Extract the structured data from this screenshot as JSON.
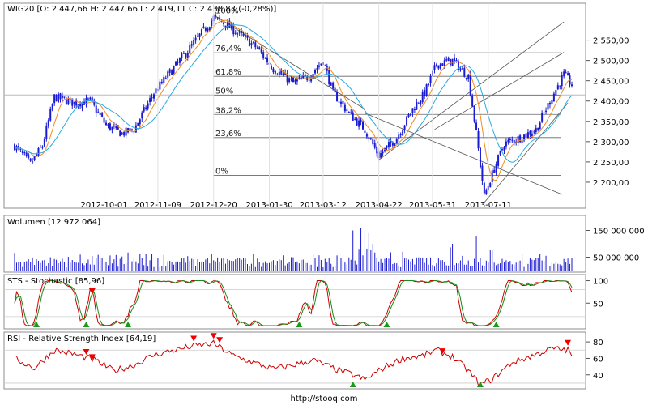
{
  "footer": "http://stooq.com",
  "price_panel": {
    "label": "WIG20 [O: 2 447,66  H: 2 447,66  L: 2 419,11  C: 2 438,83 (-0,28%)]",
    "y_ticks": [
      {
        "value": 2550,
        "label": "2 550,00"
      },
      {
        "value": 2500,
        "label": "2 500,00"
      },
      {
        "value": 2450,
        "label": "2 450,00"
      },
      {
        "value": 2400,
        "label": "2 400,00"
      },
      {
        "value": 2350,
        "label": "2 350,00"
      },
      {
        "value": 2300,
        "label": "2 300,00"
      },
      {
        "value": 2250,
        "label": "2 250,00"
      },
      {
        "value": 2200,
        "label": "2 200,00"
      }
    ],
    "x_ticks": [
      {
        "label": "2012-10-01",
        "index": 45
      },
      {
        "label": "2012-11-09",
        "index": 72
      },
      {
        "label": "2012-12-20",
        "index": 100
      },
      {
        "label": "2013-01-30",
        "index": 128
      },
      {
        "label": "2013-03-12",
        "index": 155
      },
      {
        "label": "2013-04-22",
        "index": 183
      },
      {
        "label": "2013-05-31",
        "index": 210
      },
      {
        "label": "2013-07-11",
        "index": 238
      }
    ],
    "fib_levels": [
      {
        "label": "100%",
        "value": 2612
      },
      {
        "label": "76,4%",
        "value": 2519
      },
      {
        "label": "61,8%",
        "value": 2461
      },
      {
        "label": "50%",
        "value": 2414
      },
      {
        "label": "38,2%",
        "value": 2367
      },
      {
        "label": "23,6%",
        "value": 2310
      },
      {
        "label": "0%",
        "value": 2217
      }
    ],
    "colors": {
      "candles": "#1a1ad0",
      "ma_short": "#f28c1c",
      "ma_long": "#2aa7e0",
      "lines": "#555555"
    }
  },
  "volume_panel": {
    "label": "Wolumen [12 972 064]",
    "y_ticks": [
      {
        "value": 150000000,
        "label": "150 000 000"
      },
      {
        "value": 50000000,
        "label": "50 000 000"
      }
    ],
    "max_value": 200000000
  },
  "stochastic_panel": {
    "label": "STS - Stochastic [85,96]",
    "y_ticks": [
      {
        "value": 100,
        "label": "100"
      },
      {
        "value": 50,
        "label": "50"
      }
    ],
    "colors": {
      "k": "#cc0000",
      "d": "#1a8a1a"
    }
  },
  "rsi_panel": {
    "label": "RSI - Relative Strength Index [64,19]",
    "y_ticks": [
      {
        "value": 80,
        "label": "80"
      },
      {
        "value": 60,
        "label": "60"
      },
      {
        "value": 40,
        "label": "40"
      }
    ],
    "color": "#cc0000"
  },
  "chart_data": {
    "type": "line",
    "title": "WIG20",
    "x_tick_labels": [
      "2012-10-01",
      "2012-11-09",
      "2012-12-20",
      "2013-01-30",
      "2013-03-12",
      "2013-04-22",
      "2013-05-31",
      "2013-07-11"
    ],
    "price_keyframes": [
      [
        0,
        2290
      ],
      [
        8,
        2245
      ],
      [
        14,
        2290
      ],
      [
        20,
        2410
      ],
      [
        30,
        2395
      ],
      [
        38,
        2400
      ],
      [
        46,
        2340
      ],
      [
        54,
        2320
      ],
      [
        60,
        2330
      ],
      [
        70,
        2420
      ],
      [
        78,
        2470
      ],
      [
        88,
        2530
      ],
      [
        100,
        2605
      ],
      [
        106,
        2590
      ],
      [
        114,
        2560
      ],
      [
        122,
        2530
      ],
      [
        130,
        2480
      ],
      [
        140,
        2445
      ],
      [
        148,
        2460
      ],
      [
        155,
        2500
      ],
      [
        160,
        2420
      ],
      [
        168,
        2370
      ],
      [
        176,
        2330
      ],
      [
        183,
        2265
      ],
      [
        192,
        2310
      ],
      [
        200,
        2380
      ],
      [
        206,
        2420
      ],
      [
        212,
        2490
      ],
      [
        220,
        2500
      ],
      [
        228,
        2460
      ],
      [
        232,
        2320
      ],
      [
        236,
        2165
      ],
      [
        240,
        2220
      ],
      [
        246,
        2295
      ],
      [
        254,
        2310
      ],
      [
        262,
        2330
      ],
      [
        270,
        2410
      ],
      [
        276,
        2465
      ],
      [
        280,
        2440
      ]
    ],
    "volume_spikes": [
      [
        170,
        150
      ],
      [
        174,
        160
      ],
      [
        176,
        155
      ],
      [
        178,
        140
      ],
      [
        180,
        100
      ],
      [
        220,
        100
      ],
      [
        232,
        130
      ],
      [
        240,
        75
      ]
    ],
    "rsi_keyframes": [
      [
        0,
        60
      ],
      [
        10,
        48
      ],
      [
        20,
        70
      ],
      [
        30,
        65
      ],
      [
        40,
        58
      ],
      [
        50,
        45
      ],
      [
        60,
        52
      ],
      [
        70,
        64
      ],
      [
        80,
        70
      ],
      [
        90,
        75
      ],
      [
        100,
        78
      ],
      [
        110,
        63
      ],
      [
        120,
        55
      ],
      [
        130,
        47
      ],
      [
        140,
        52
      ],
      [
        150,
        58
      ],
      [
        160,
        48
      ],
      [
        170,
        40
      ],
      [
        176,
        34
      ],
      [
        185,
        48
      ],
      [
        195,
        60
      ],
      [
        205,
        63
      ],
      [
        212,
        70
      ],
      [
        220,
        62
      ],
      [
        228,
        45
      ],
      [
        234,
        28
      ],
      [
        240,
        35
      ],
      [
        250,
        55
      ],
      [
        260,
        63
      ],
      [
        270,
        72
      ],
      [
        278,
        70
      ],
      [
        280,
        64
      ]
    ]
  }
}
